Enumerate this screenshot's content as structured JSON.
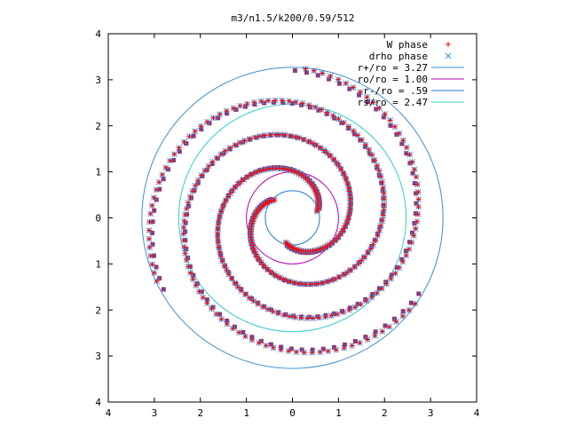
{
  "chart_data": {
    "type": "scatter",
    "title": "m3/n1.5/k200/0.59/512",
    "xlabel": "",
    "ylabel": "",
    "xlim": [
      -4,
      4
    ],
    "ylim": [
      -4,
      4
    ],
    "xticks": [
      {
        "value": -4,
        "label": "4"
      },
      {
        "value": -3,
        "label": "3"
      },
      {
        "value": -2,
        "label": "2"
      },
      {
        "value": -1,
        "label": "1"
      },
      {
        "value": 0,
        "label": "0"
      },
      {
        "value": 1,
        "label": "1"
      },
      {
        "value": 2,
        "label": "2"
      },
      {
        "value": 3,
        "label": "3"
      },
      {
        "value": 4,
        "label": "4"
      }
    ],
    "yticks": [
      {
        "value": 4,
        "label": "4"
      },
      {
        "value": 3,
        "label": "3"
      },
      {
        "value": 2,
        "label": "2"
      },
      {
        "value": 1,
        "label": "1"
      },
      {
        "value": 0,
        "label": "0"
      },
      {
        "value": -1,
        "label": "1"
      },
      {
        "value": -2,
        "label": "2"
      },
      {
        "value": -3,
        "label": "3"
      },
      {
        "value": -4,
        "label": "4"
      }
    ],
    "grid": false,
    "legend_position": "top-right",
    "series": [
      {
        "name": "W phase",
        "kind": "points",
        "marker": "plus",
        "color": "#ff0000",
        "spiral": {
          "arms": 3,
          "r_start": 0.55,
          "r_end": 3.25,
          "theta_start_deg": 135,
          "theta_span_deg": 430,
          "points_per_arm": 130,
          "rotation_deg": 0
        }
      },
      {
        "name": "drho phase",
        "kind": "points",
        "marker": "cross",
        "color": "#3c8cdc",
        "spiral": {
          "arms": 3,
          "r_start": 0.55,
          "r_end": 3.25,
          "theta_start_deg": 135,
          "theta_span_deg": 430,
          "points_per_arm": 130,
          "rotation_deg": 0
        }
      },
      {
        "name": "",
        "kind": "points",
        "marker": "square",
        "color": "#8b3a7a",
        "spiral": {
          "arms": 3,
          "r_start": 0.62,
          "r_end": 3.2,
          "theta_start_deg": 135,
          "theta_span_deg": 430,
          "points_per_arm": 95,
          "rotation_deg": 4
        }
      },
      {
        "name": "r+/ro = 3.27",
        "kind": "circle",
        "radius": 3.27,
        "color": "#3a8fd0"
      },
      {
        "name": "ro/ro = 1.00",
        "kind": "circle",
        "radius": 1.0,
        "color": "#b000b0"
      },
      {
        "name": "r-/ro = .59",
        "kind": "circle",
        "radius": 0.59,
        "color": "#2277cc"
      },
      {
        "name": "rs/ro = 2.47",
        "kind": "circle",
        "radius": 2.47,
        "color": "#33cccc"
      }
    ]
  }
}
